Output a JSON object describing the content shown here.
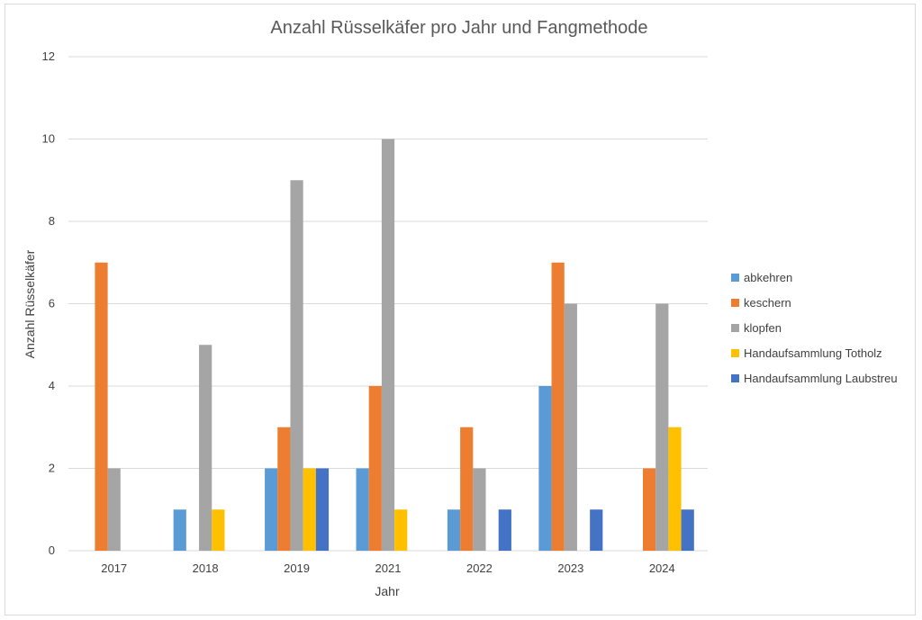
{
  "chart_data": {
    "type": "bar",
    "title": "Anzahl Rüsselkäfer pro Jahr und Fangmethode",
    "xlabel": "Jahr",
    "ylabel": "Anzahl Rüsselkäfer",
    "categories": [
      "2017",
      "2018",
      "2019",
      "2021",
      "2022",
      "2023",
      "2024"
    ],
    "ylim": [
      0,
      12
    ],
    "yticks": [
      0,
      2,
      4,
      6,
      8,
      10,
      12
    ],
    "grid": true,
    "legend_position": "right",
    "series": [
      {
        "name": "abkehren",
        "color": "#5B9BD5",
        "values": [
          0,
          1,
          2,
          2,
          1,
          4,
          0
        ]
      },
      {
        "name": "keschern",
        "color": "#ED7D31",
        "values": [
          7,
          0,
          3,
          4,
          3,
          7,
          2
        ]
      },
      {
        "name": "klopfen",
        "color": "#A5A5A5",
        "values": [
          2,
          5,
          9,
          10,
          2,
          6,
          6
        ]
      },
      {
        "name": "Handaufsammlung Totholz",
        "color": "#FFC000",
        "values": [
          0,
          1,
          2,
          1,
          0,
          0,
          3
        ]
      },
      {
        "name": "Handaufsammlung Laubstreu",
        "color": "#4472C4",
        "values": [
          0,
          0,
          2,
          0,
          1,
          1,
          1
        ]
      }
    ]
  }
}
